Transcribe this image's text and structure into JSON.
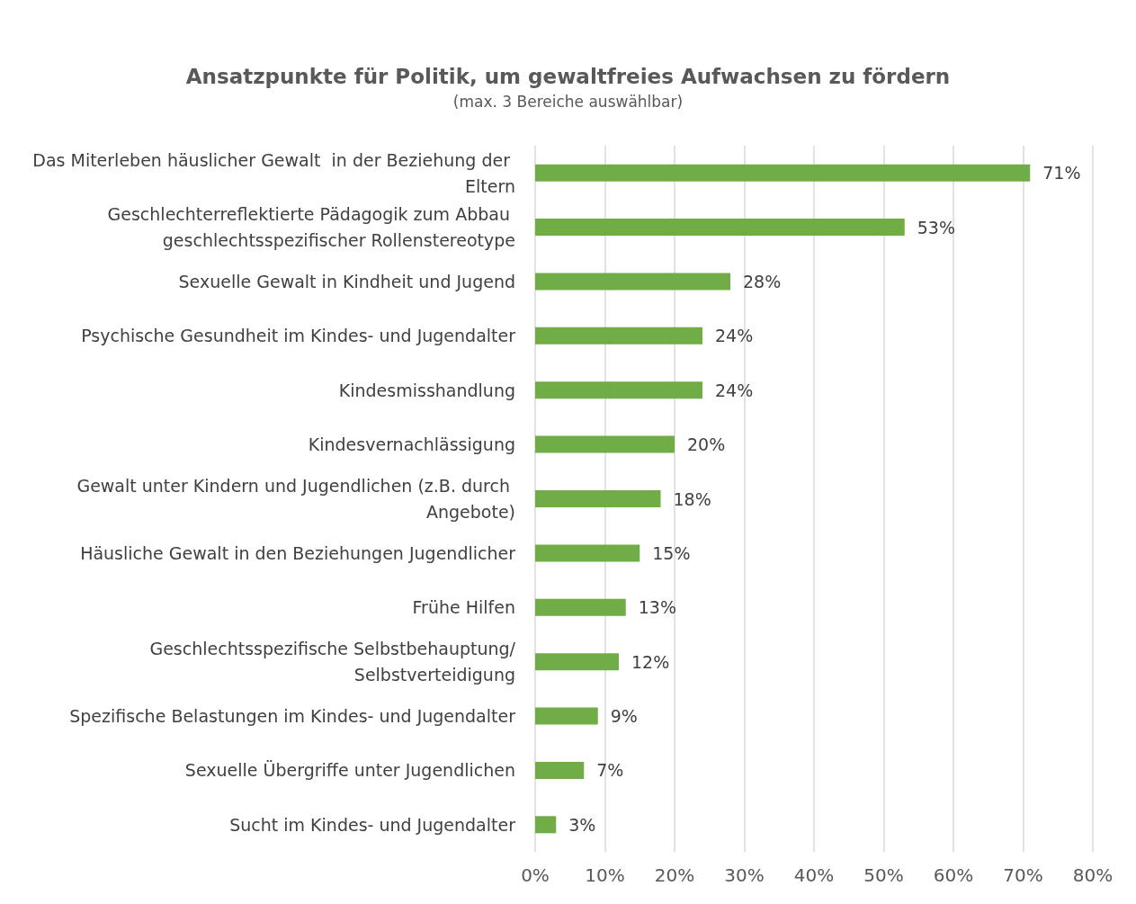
{
  "chart_data": {
    "type": "bar",
    "orientation": "horizontal",
    "title": "Ansatzpunkte für Politik, um gewaltfreies Aufwachsen zu fördern",
    "subtitle": "(max. 3 Bereiche auswählbar)",
    "categories": [
      "Das Miterleben häuslicher Gewalt  in der Beziehung der Eltern",
      "Geschlechterreflektierte Pädagogik zum Abbau geschlechtsspezifischer Rollenstereotype",
      "Sexuelle Gewalt in Kindheit und Jugend",
      "Psychische Gesundheit im Kindes- und Jugendalter",
      "Kindesmisshandlung",
      "Kindesvernachlässigung",
      "Gewalt unter Kindern und Jugendlichen (z.B. durch Angebote)",
      "Häusliche Gewalt in den Beziehungen Jugendlicher",
      "Frühe Hilfen",
      "Geschlechtsspezifische Selbstbehauptung/Selbstverteidigung",
      "Spezifische Belastungen im Kindes- und Jugendalter",
      "Sexuelle Übergriffe unter Jugendlichen",
      "Sucht im Kindes- und Jugendalter"
    ],
    "values": [
      71,
      53,
      28,
      24,
      24,
      20,
      18,
      15,
      13,
      12,
      9,
      7,
      3
    ],
    "value_labels": [
      "71%",
      "53%",
      "28%",
      "24%",
      "24%",
      "20%",
      "18%",
      "15%",
      "13%",
      "12%",
      "9%",
      "7%",
      "3%"
    ],
    "color": "#70ad47",
    "xlim": [
      0,
      80
    ],
    "xticks": [
      {
        "value": 0,
        "label": "0%"
      },
      {
        "value": 10,
        "label": "10%"
      },
      {
        "value": 20,
        "label": "20%"
      },
      {
        "value": 30,
        "label": "30%"
      },
      {
        "value": 40,
        "label": "40%"
      },
      {
        "value": 50,
        "label": "50%"
      },
      {
        "value": 60,
        "label": "60%"
      },
      {
        "value": 70,
        "label": "70%"
      },
      {
        "value": 80,
        "label": "80%"
      }
    ],
    "grid": "x"
  }
}
